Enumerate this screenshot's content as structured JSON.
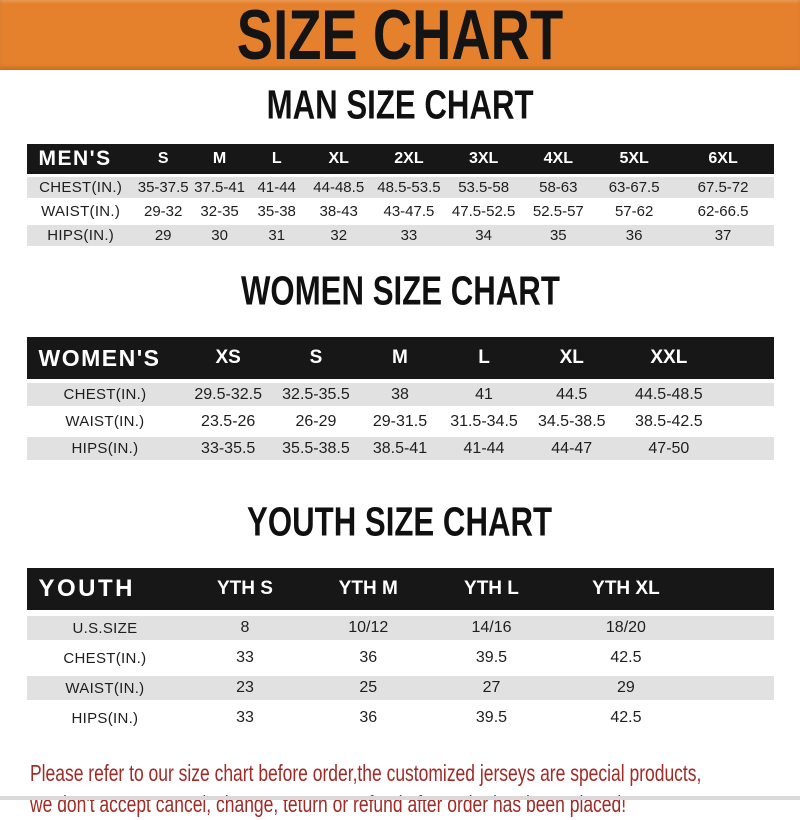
{
  "banner": {
    "title": "SIZE CHART"
  },
  "sections": [
    {
      "title": "MAN SIZE CHART",
      "header": {
        "label": "MEN'S",
        "columns": [
          "S",
          "M",
          "L",
          "XL",
          "2XL",
          "3XL",
          "4XL",
          "5XL",
          "6XL"
        ]
      },
      "rows": [
        {
          "label": "CHEST(IN.)",
          "values": [
            "35-37.5",
            "37.5-41",
            "41-44",
            "44-48.5",
            "48.5-53.5",
            "53.5-58",
            "58-63",
            "63-67.5",
            "67.5-72"
          ]
        },
        {
          "label": "WAIST(IN.)",
          "values": [
            "29-32",
            "32-35",
            "35-38",
            "38-43",
            "43-47.5",
            "47.5-52.5",
            "52.5-57",
            "57-62",
            "62-66.5"
          ]
        },
        {
          "label": "HIPS(IN.)",
          "values": [
            "29",
            "30",
            "31",
            "32",
            "33",
            "34",
            "35",
            "36",
            "37"
          ]
        }
      ]
    },
    {
      "title": "WOMEN SIZE CHART",
      "header": {
        "label": "WOMEN'S",
        "columns": [
          "XS",
          "S",
          "M",
          "L",
          "XL",
          "XXL"
        ]
      },
      "rows": [
        {
          "label": "CHEST(IN.)",
          "values": [
            "29.5-32.5",
            "32.5-35.5",
            "38",
            "41",
            "44.5",
            "44.5-48.5"
          ]
        },
        {
          "label": "WAIST(IN.)",
          "values": [
            "23.5-26",
            "26-29",
            "29-31.5",
            "31.5-34.5",
            "34.5-38.5",
            "38.5-42.5"
          ]
        },
        {
          "label": "HIPS(IN.)",
          "values": [
            "33-35.5",
            "35.5-38.5",
            "38.5-41",
            "41-44",
            "44-47",
            "47-50"
          ]
        }
      ]
    },
    {
      "title": "YOUTH SIZE CHART",
      "header": {
        "label": "YOUTH",
        "columns": [
          "YTH S",
          "YTH M",
          "YTH L",
          "YTH XL"
        ]
      },
      "rows": [
        {
          "label": "U.S.SIZE",
          "values": [
            "8",
            "10/12",
            "14/16",
            "18/20"
          ]
        },
        {
          "label": "CHEST(IN.)",
          "values": [
            "33",
            "36",
            "39.5",
            "42.5"
          ]
        },
        {
          "label": "WAIST(IN.)",
          "values": [
            "23",
            "25",
            "27",
            "29"
          ]
        },
        {
          "label": "HIPS(IN.)",
          "values": [
            "33",
            "36",
            "39.5",
            "42.5"
          ]
        }
      ]
    }
  ],
  "footer": {
    "line1": "Please refer to our size chart before order,the customized jerseys are special products,",
    "line2": "we don't accept cancel, change, teturn or refund after order has been placed!"
  },
  "colors": {
    "banner_bg": "#E5812C",
    "header_bar": "#171717",
    "row_stripe": "#E1E1E1",
    "notice_text": "#A12B26"
  }
}
